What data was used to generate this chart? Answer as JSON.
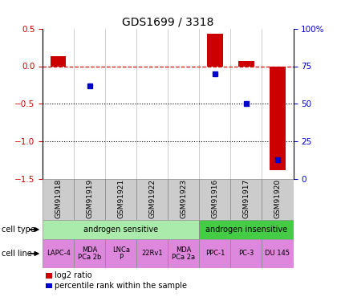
{
  "title": "GDS1699 / 3318",
  "samples": [
    "GSM91918",
    "GSM91919",
    "GSM91921",
    "GSM91922",
    "GSM91923",
    "GSM91916",
    "GSM91917",
    "GSM91920"
  ],
  "log2_ratio": [
    0.13,
    0.0,
    0.0,
    0.0,
    0.0,
    0.43,
    0.07,
    -1.38
  ],
  "percentile_rank_right": [
    null,
    62,
    null,
    null,
    null,
    70,
    50,
    13
  ],
  "ylim": [
    -1.5,
    0.5
  ],
  "yticks_left": [
    -1.5,
    -1.0,
    -0.5,
    0.0,
    0.5
  ],
  "yticks_right": [
    0,
    25,
    50,
    75,
    100
  ],
  "cell_type_labels": [
    {
      "label": "androgen sensitive",
      "start": 0,
      "end": 5,
      "color": "#aaeaaa"
    },
    {
      "label": "androgen insensitive",
      "start": 5,
      "end": 8,
      "color": "#44cc44"
    }
  ],
  "cell_line_labels": [
    {
      "label": "LAPC-4",
      "start": 0,
      "end": 1
    },
    {
      "label": "MDA\nPCa 2b",
      "start": 1,
      "end": 2
    },
    {
      "label": "LNCa\nP",
      "start": 2,
      "end": 3
    },
    {
      "label": "22Rv1",
      "start": 3,
      "end": 4
    },
    {
      "label": "MDA\nPCa 2a",
      "start": 4,
      "end": 5
    },
    {
      "label": "PPC-1",
      "start": 5,
      "end": 6
    },
    {
      "label": "PC-3",
      "start": 6,
      "end": 7
    },
    {
      "label": "DU 145",
      "start": 7,
      "end": 8
    }
  ],
  "cell_line_color": "#dd88dd",
  "bar_color": "#cc0000",
  "dot_color": "#0000cc",
  "dashed_line_color": "#cc0000",
  "sample_box_color": "#cccccc",
  "title_fontsize": 10,
  "tick_fontsize": 7.5,
  "sample_fontsize": 6.5,
  "annot_fontsize": 7,
  "cell_line_fontsize": 6,
  "legend_fontsize": 7
}
